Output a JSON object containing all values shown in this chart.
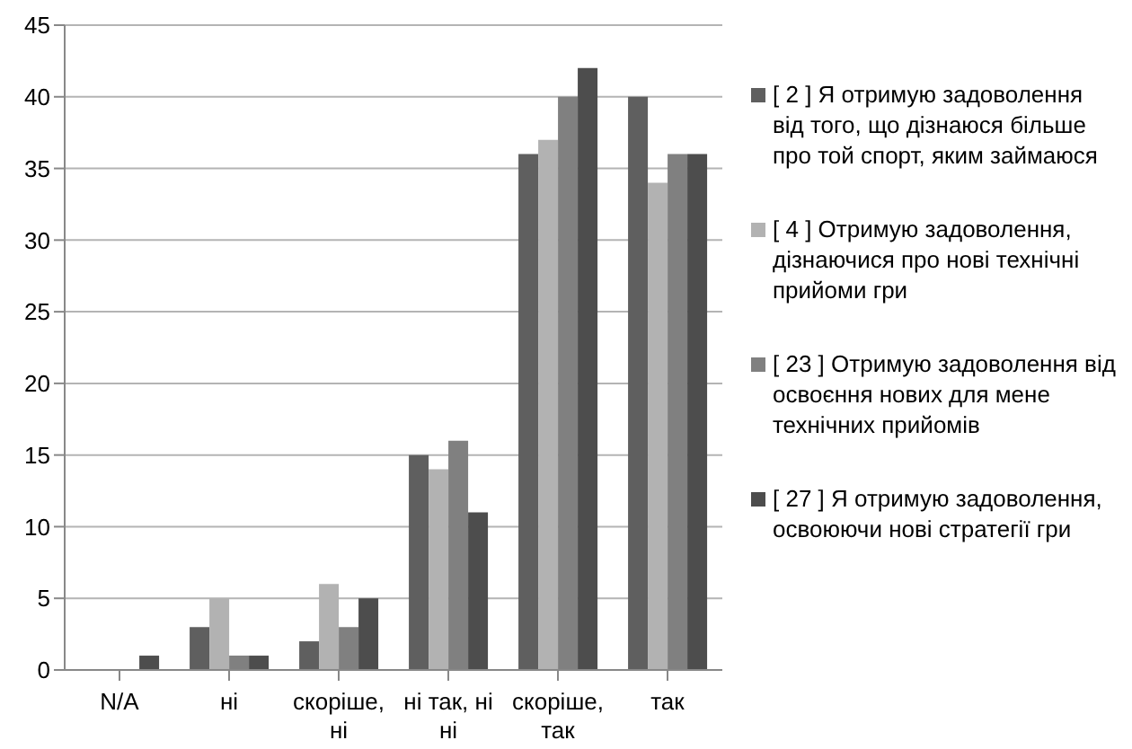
{
  "chart_data": {
    "type": "bar",
    "categories": [
      "N/A",
      "ні",
      "скоріше, ні",
      "ні так, ні ні",
      "скоріше, так",
      "так"
    ],
    "series": [
      {
        "name": "[ 2 ] Я отримую задоволення від того, що дізнаюся більше про той спорт, яким займаюся",
        "color": "#5f5f5f",
        "values": [
          0,
          3,
          2,
          15,
          36,
          40
        ]
      },
      {
        "name": "[ 4 ]  Отримую задоволення, дізнаючися про нові технічні прийоми гри",
        "color": "#b2b2b2",
        "values": [
          0,
          5,
          6,
          14,
          37,
          34
        ]
      },
      {
        "name": "[ 23 ] Отримую задоволення від освоєння нових для мене технічних прийомів",
        "color": "#808080",
        "values": [
          0,
          1,
          3,
          16,
          40,
          36
        ]
      },
      {
        "name": "[ 27 ] Я отримую задоволення, освоюючи нові стратегії гри",
        "color": "#4d4d4d",
        "values": [
          1,
          1,
          5,
          11,
          42,
          36
        ]
      }
    ],
    "ylim": [
      0,
      45
    ],
    "yticks": [
      0,
      5,
      10,
      15,
      20,
      25,
      30,
      35,
      40,
      45
    ],
    "grid": "y",
    "legend": "right"
  }
}
